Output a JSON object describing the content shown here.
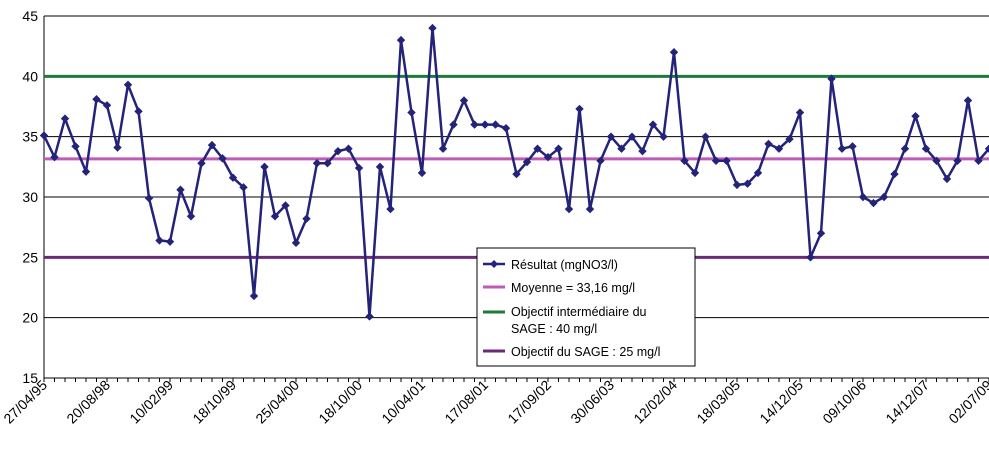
{
  "chart_data": {
    "type": "line",
    "title": "",
    "xlabel": "",
    "ylabel": "",
    "ylim": [
      15,
      45
    ],
    "y_ticks": [
      15,
      20,
      25,
      30,
      35,
      40,
      45
    ],
    "grid": true,
    "legend_position": "bottom-center",
    "x_tick_labels": [
      "27/04/95",
      "20/08/98",
      "10/02/99",
      "18/10/99",
      "25/04/00",
      "18/10/00",
      "10/04/01",
      "17/08/01",
      "17/09/02",
      "30/06/03",
      "12/02/04",
      "18/03/05",
      "14/12/05",
      "09/10/06",
      "14/12/07",
      "02/07/09"
    ],
    "series": [
      {
        "name": "Résultat (mgNO3/l)",
        "color": "#23237a",
        "marker": "diamond",
        "values": [
          35.1,
          33.3,
          36.5,
          34.2,
          32.1,
          38.1,
          37.6,
          34.1,
          39.3,
          37.1,
          29.9,
          26.4,
          26.3,
          30.6,
          28.4,
          32.8,
          34.3,
          33.2,
          31.6,
          30.8,
          21.8,
          32.5,
          28.4,
          29.3,
          26.2,
          28.2,
          32.8,
          32.8,
          33.8,
          34.0,
          32.4,
          20.1,
          32.5,
          29.0,
          43.0,
          37.0,
          32.0,
          44.0,
          34.0,
          36.0,
          38.0,
          36.0,
          36.0,
          36.0,
          35.7,
          31.9,
          32.9,
          34.0,
          33.3,
          34.0,
          29.0,
          37.3,
          29.0,
          33.0,
          35.0,
          34.0,
          35.0,
          33.8,
          36.0,
          35.0,
          42.0,
          33.0,
          32.0,
          35.0,
          33.0,
          33.0,
          31.0,
          31.1,
          32.0,
          34.4,
          34.0,
          34.8,
          37.0,
          25.0,
          27.0,
          39.8,
          34.0,
          34.2,
          30.0,
          29.5,
          30.0,
          31.9,
          34.0,
          36.7,
          34.0,
          33.0,
          31.5,
          33.0,
          38.0,
          33.0,
          34.0
        ]
      },
      {
        "name": "Moyenne = 33,16 mg/l",
        "color": "#c05ab8",
        "constant": 33.16
      },
      {
        "name": "Objectif intermédiaire du SAGE : 40 mg/l",
        "color": "#1f7a3a",
        "constant": 40
      },
      {
        "name": "Objectif du SAGE : 25 mg/l",
        "color": "#6a2a7a",
        "constant": 25
      }
    ]
  }
}
